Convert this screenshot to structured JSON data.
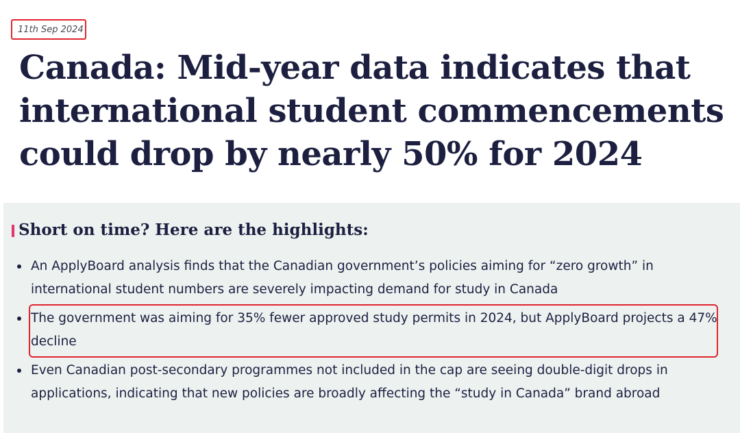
{
  "article": {
    "date": "11th Sep 2024",
    "title": "Canada: Mid-year data indicates that international student commencements could drop by nearly 50% for 2024"
  },
  "highlights": {
    "heading": "Short on time? Here are the highlights:",
    "items": [
      {
        "text": "An ApplyBoard analysis finds that the Canadian government’s policies aiming for “zero growth” in international student numbers are severely impacting demand for study in Canada"
      },
      {
        "text": "The government was aiming for 35% fewer approved study permits in 2024, but ApplyBoard projects a 47% decline"
      },
      {
        "text": "Even Canadian post-secondary programmes not included in the cap are seeing double-digit drops in applications, indicating that new policies are broadly affecting the “study in Canada” brand abroad"
      }
    ]
  },
  "colors": {
    "title_text": "#1c1f3f",
    "panel_background": "#edf1f0",
    "annotation_box": "#e0242c",
    "accent_bar": "#e0366a"
  }
}
